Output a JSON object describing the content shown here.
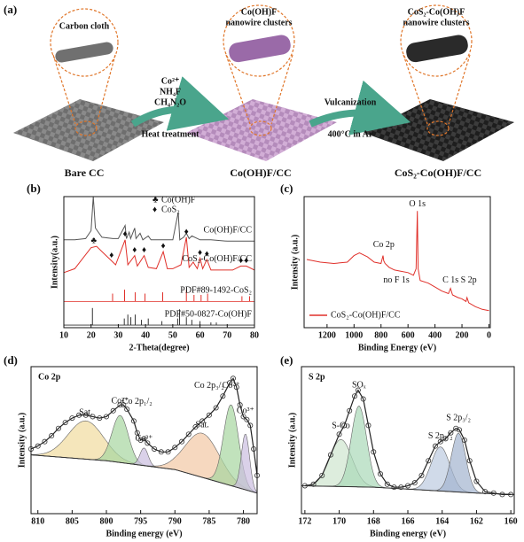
{
  "figure_labels": [
    "(a)",
    "(b)",
    "(c)",
    "(d)",
    "(e)"
  ],
  "schematic": {
    "stages": [
      {
        "caption": "Bare CC",
        "callout": [
          "Carbon cloth"
        ]
      },
      {
        "caption": "Co(OH)F/CC",
        "callout": [
          "Co(OH)F",
          "nanowire clusters"
        ]
      },
      {
        "caption": "CoS₂-Co(OH)F/CC",
        "callout": [
          "CoS₂-Co(OH)F",
          "nanowire clusters"
        ]
      }
    ],
    "steps": [
      {
        "above": [
          "Co²⁺",
          "NH₄F",
          "CH₄N₂O"
        ],
        "below": "Heat treatment"
      },
      {
        "above": [
          "Vulcanization"
        ],
        "below": "400°C in Ar"
      }
    ]
  },
  "chart_data": [
    {
      "type": "line",
      "xlabel": "2-Theta(degree)",
      "ylabel": "Intensity(a.u.)",
      "xlim": [
        10,
        80
      ],
      "xticks": [
        10,
        20,
        30,
        40,
        50,
        60,
        70,
        80
      ],
      "ylim": [
        0,
        100
      ],
      "series": [
        {
          "name": "Co(OH)F/CC",
          "color": "#555555",
          "x": [
            10,
            14,
            18,
            20,
            20.8,
            21.6,
            24,
            28,
            30,
            32.5,
            33,
            34,
            34.5,
            36,
            36.5,
            38,
            39,
            41,
            42,
            46,
            50,
            52,
            52.6,
            54,
            55,
            56,
            57,
            60,
            64,
            70,
            76,
            80
          ],
          "values": [
            67,
            67,
            68,
            74,
            100,
            76,
            69,
            68,
            68,
            78,
            68,
            73,
            68,
            76,
            68,
            72,
            67,
            70,
            67,
            67,
            67,
            88,
            67,
            69,
            72,
            68,
            70,
            67,
            67,
            66,
            66,
            66
          ]
        },
        {
          "name": "CoS₂-Co(OH)F/CC",
          "color": "#e0302a",
          "x": [
            10,
            14,
            17,
            20,
            22,
            25,
            27.5,
            29,
            32.5,
            33.5,
            36,
            37,
            39.5,
            41,
            44,
            46.5,
            48,
            50,
            53,
            55,
            56,
            57.5,
            59,
            60,
            61,
            62.5,
            64,
            68,
            72,
            75,
            77,
            80
          ],
          "values": [
            42,
            45,
            53,
            61,
            62,
            56,
            51,
            48,
            67,
            48,
            55,
            47,
            55,
            46,
            45,
            58,
            45,
            45,
            48,
            69,
            46,
            50,
            45,
            53,
            45,
            52,
            44,
            44,
            44,
            47,
            47,
            44
          ]
        }
      ],
      "references": [
        {
          "name": "PDF#89-1492-CoS₂",
          "color": "#e0302a",
          "base": 20,
          "x": [
            27.9,
            32.3,
            36.2,
            39.8,
            46.3,
            55,
            57.8,
            60.4,
            62.8,
            75.4,
            78.2
          ],
          "values": [
            26,
            29,
            27,
            26,
            27,
            29,
            25,
            25,
            26,
            24,
            24
          ]
        },
        {
          "name": "PDF#50-0827-Co(OH)F",
          "color": "#333333",
          "base": 2,
          "x": [
            20.5,
            32.2,
            33.5,
            34.6,
            36.2,
            38.5,
            41,
            46,
            51.8,
            52.5,
            55,
            57,
            60,
            64,
            66
          ],
          "values": [
            15,
            7,
            10,
            8,
            10,
            6,
            7,
            5,
            7,
            14,
            8,
            6,
            5,
            4,
            4
          ]
        }
      ],
      "legend": [
        {
          "symbol": "♣",
          "label": "Co(OH)F"
        },
        {
          "symbol": "♦",
          "label": "CoS₂"
        }
      ],
      "peak_markers": [
        {
          "symbol": "♣",
          "x": 21,
          "y": 66
        },
        {
          "symbol": "♦",
          "x": 27.5,
          "y": 55
        },
        {
          "symbol": "♦",
          "x": 32.5,
          "y": 71
        },
        {
          "symbol": "♦",
          "x": 36,
          "y": 59
        },
        {
          "symbol": "♦",
          "x": 39.5,
          "y": 59
        },
        {
          "symbol": "♦",
          "x": 46.5,
          "y": 62
        },
        {
          "symbol": "♦",
          "x": 55,
          "y": 73
        },
        {
          "symbol": "♦",
          "x": 60,
          "y": 57
        },
        {
          "symbol": "♦",
          "x": 62.5,
          "y": 56
        },
        {
          "symbol": "♦",
          "x": 75,
          "y": 51
        },
        {
          "symbol": "♦",
          "x": 77,
          "y": 51
        }
      ]
    },
    {
      "type": "line",
      "xlabel": "Binding Energy (eV)",
      "ylabel": "Intensity (a.u.)",
      "xlim": [
        1370,
        -10
      ],
      "xticks": [
        1200,
        1000,
        800,
        600,
        400,
        200,
        0
      ],
      "ylim": [
        0,
        100
      ],
      "legend": "lower left",
      "series": [
        {
          "name": "CoS₂-Co(OH)F/CC",
          "color": "#e0302a",
          "x": [
            1350,
            1250,
            1150,
            1050,
            1000,
            960,
            900,
            850,
            800,
            785,
            780,
            770,
            740,
            700,
            650,
            600,
            560,
            540,
            531,
            525,
            510,
            450,
            400,
            350,
            300,
            285,
            270,
            230,
            200,
            170,
            163,
            150,
            100,
            50,
            0
          ],
          "values": [
            52,
            50,
            49,
            50,
            55,
            57,
            54,
            50,
            49,
            55,
            51,
            49,
            46,
            44,
            43,
            42,
            40,
            45,
            89,
            45,
            36,
            34,
            31,
            28,
            26,
            30,
            25,
            23,
            22,
            20,
            23,
            19,
            16,
            14,
            13
          ]
        }
      ],
      "annotations": [
        {
          "label": "O 1s",
          "x": 531,
          "y": 94
        },
        {
          "label": "Co 2p",
          "x": 780,
          "y": 63
        },
        {
          "label": "no F 1s",
          "x": 686,
          "y": 36
        },
        {
          "label": "C 1s",
          "x": 285,
          "y": 36
        },
        {
          "label": "S 2p",
          "x": 150,
          "y": 36
        }
      ]
    },
    {
      "type": "xps_fit",
      "title": "Co 2p",
      "xlabel": "Binding energy (eV)",
      "ylabel": "Intensity (a.u.)",
      "xlim": [
        811,
        778
      ],
      "xticks": [
        810,
        805,
        800,
        795,
        790,
        785,
        780
      ],
      "ylim": [
        0,
        100
      ],
      "background": {
        "x": [
          811,
          800,
          795,
          790,
          784,
          778
        ],
        "values": [
          40,
          36,
          33,
          30,
          22,
          14
        ]
      },
      "envelope": {
        "x": [
          811,
          810,
          809,
          808,
          807,
          806,
          805,
          804,
          803,
          802,
          801,
          800,
          799,
          798,
          797.5,
          797,
          796,
          795.5,
          795,
          794.5,
          794,
          793,
          792,
          791,
          790,
          789,
          788,
          787,
          786,
          785,
          784,
          783,
          782,
          781.5,
          781,
          780.5,
          780,
          779.5,
          779,
          778.5,
          778
        ],
        "values": [
          44,
          46,
          49,
          53,
          58,
          62,
          65,
          67,
          67,
          66,
          65,
          66,
          70,
          74,
          74,
          71,
          63,
          55,
          50,
          51,
          48,
          44,
          42,
          42,
          45,
          49,
          54,
          59,
          63,
          67,
          72,
          80,
          89,
          92,
          86,
          74,
          66,
          64,
          60,
          44,
          26
        ]
      },
      "peaks": [
        {
          "name": "Sat.",
          "color": "#f1dc9e",
          "center": 803,
          "height": 26,
          "width": 2.6
        },
        {
          "name": "Co²⁺",
          "color": "#a6d6a0",
          "center": 798,
          "height": 32,
          "width": 1.2
        },
        {
          "name": "Co³⁺",
          "color": "#cbbde0",
          "center": 794.5,
          "height": 12,
          "width": 0.6
        },
        {
          "name": "Sat.",
          "color": "#f2c8a4",
          "center": 786,
          "height": 30,
          "width": 2.5
        },
        {
          "name": "Co²⁺",
          "color": "#a6d6a0",
          "center": 781.8,
          "height": 55,
          "width": 1.1
        },
        {
          "name": "Co³⁺",
          "color": "#cbbde0",
          "center": 779.7,
          "height": 38,
          "width": 0.6
        }
      ],
      "annotations": [
        {
          "label": "Co 2p₁/₂",
          "x": 795.5,
          "y": 76
        },
        {
          "label": "Co 2p₃/₂",
          "x": 785,
          "y": 87
        }
      ]
    },
    {
      "type": "xps_fit",
      "title": "S 2p",
      "xlabel": "Binding energy (eV)",
      "ylabel": "Intensity (a.u.)",
      "xlim": [
        172.2,
        159.8
      ],
      "xticks": [
        172,
        170,
        168,
        166,
        164,
        162,
        160
      ],
      "ylim": [
        0,
        100
      ],
      "background": {
        "x": [
          172.2,
          168,
          165,
          162,
          159.8
        ],
        "values": [
          19,
          18,
          16,
          14,
          13
        ]
      },
      "envelope": {
        "x": [
          172,
          171.5,
          171,
          170.5,
          170,
          169.7,
          169.4,
          169.1,
          168.9,
          168.6,
          168.3,
          168,
          167.6,
          167.2,
          166.8,
          166.4,
          166,
          165.6,
          165.2,
          164.8,
          164.4,
          164.1,
          163.8,
          163.5,
          163.2,
          163,
          162.7,
          162.4,
          162,
          161.5,
          161,
          160.5,
          160
        ],
        "values": [
          19,
          20,
          26,
          40,
          54,
          60,
          70,
          80,
          84,
          78,
          60,
          42,
          27,
          20,
          18,
          18,
          19,
          21,
          26,
          36,
          46,
          49,
          51,
          55,
          58,
          57,
          50,
          36,
          22,
          15,
          14,
          13,
          13
        ]
      },
      "peaks": [
        {
          "name": "S-Co",
          "color": "#cfe6cf",
          "center": 169.9,
          "height": 32,
          "width": 0.65
        },
        {
          "name": "SOₓ",
          "color": "#a9d8b8",
          "center": 168.85,
          "height": 55,
          "width": 0.45
        },
        {
          "name": "S 2p₁/₂",
          "color": "#bccadf",
          "center": 164.1,
          "height": 30,
          "width": 0.55
        },
        {
          "name": "S 2p₃/₂",
          "color": "#a3b3cf",
          "center": 163.05,
          "height": 40,
          "width": 0.42
        }
      ]
    }
  ]
}
